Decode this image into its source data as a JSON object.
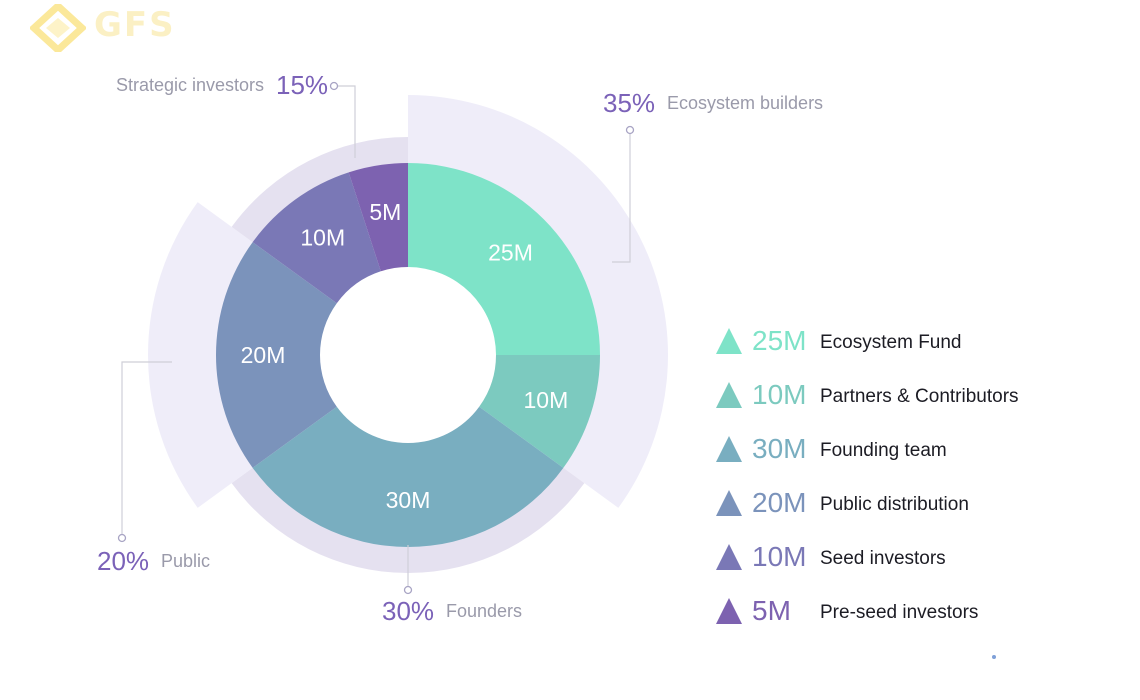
{
  "logo": {
    "text": "GFS",
    "colors": {
      "mark": "#fbe89a",
      "text": "#fbf0c4"
    }
  },
  "chart_data": {
    "type": "pie",
    "variant": "donut",
    "unit": "M",
    "slices": [
      {
        "label": "25M",
        "value": 25,
        "color": "#7ee3c8"
      },
      {
        "label": "10M",
        "value": 10,
        "color": "#7ccabf"
      },
      {
        "label": "30M",
        "value": 30,
        "color": "#79aec0"
      },
      {
        "label": "20M",
        "value": 20,
        "color": "#7b93bb"
      },
      {
        "label": "10M",
        "value": 10,
        "color": "#7a78b6"
      },
      {
        "label": "5M",
        "value": 5,
        "color": "#7d62b0"
      }
    ],
    "groups": [
      {
        "percent": "35%",
        "name": "Ecosystem builders",
        "value": 35,
        "color": "#efedf9"
      },
      {
        "percent": "30%",
        "name": "Founders",
        "value": 30,
        "color": "#e5e1f0"
      },
      {
        "percent": "20%",
        "name": "Public",
        "value": 20,
        "color": "#efedf9"
      },
      {
        "percent": "15%",
        "name": "Strategic investors",
        "value": 15,
        "color": "#e5e1f0"
      }
    ],
    "legend": [
      {
        "value": "25M",
        "label": "Ecosystem Fund",
        "color": "#7ee3c8"
      },
      {
        "value": "10M",
        "label": "Partners & Contributors",
        "color": "#7ccabf"
      },
      {
        "value": "30M",
        "label": "Founding team",
        "color": "#79aec0"
      },
      {
        "value": "20M",
        "label": "Public distribution",
        "color": "#7b93bb"
      },
      {
        "value": "10M",
        "label": "Seed investors",
        "color": "#7a78b6"
      },
      {
        "value": "5M",
        "label": "Pre-seed investors",
        "color": "#7d62b0"
      }
    ],
    "colors": {
      "percent_text": "#7b62b8",
      "group_label_text": "#9a9aaa",
      "leader_line": "#cfcfd8"
    }
  }
}
